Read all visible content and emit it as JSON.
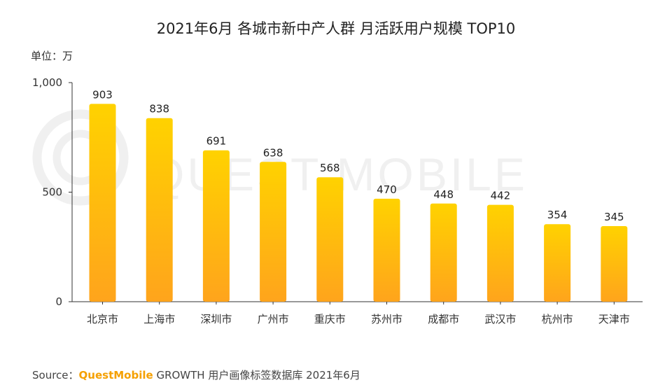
{
  "colors": {
    "bar_top": "#ffd200",
    "bar_bottom": "#ffa41c",
    "brand": "#f5a000",
    "axis": "#333333",
    "watermark": "#f0f0f0"
  },
  "watermark": "QUEST MOBILE",
  "unit_label": "单位：万",
  "source": {
    "prefix": "Source：",
    "brand": "QuestMobile",
    "suffix": " GROWTH 用户画像标签数据库 2021年6月"
  },
  "chart_data": {
    "type": "bar",
    "title": "2021年6月 各城市新中产人群 月活跃用户规模 TOP10",
    "xlabel": "",
    "ylabel": "",
    "ylim": [
      0,
      1000
    ],
    "yticks": [
      0,
      500,
      1000
    ],
    "ytick_labels": [
      "0",
      "500",
      "1,000"
    ],
    "categories": [
      "北京市",
      "上海市",
      "深圳市",
      "广州市",
      "重庆市",
      "苏州市",
      "成都市",
      "武汉市",
      "杭州市",
      "天津市"
    ],
    "values": [
      903,
      838,
      691,
      638,
      568,
      470,
      448,
      442,
      354,
      345
    ],
    "grid": false
  }
}
